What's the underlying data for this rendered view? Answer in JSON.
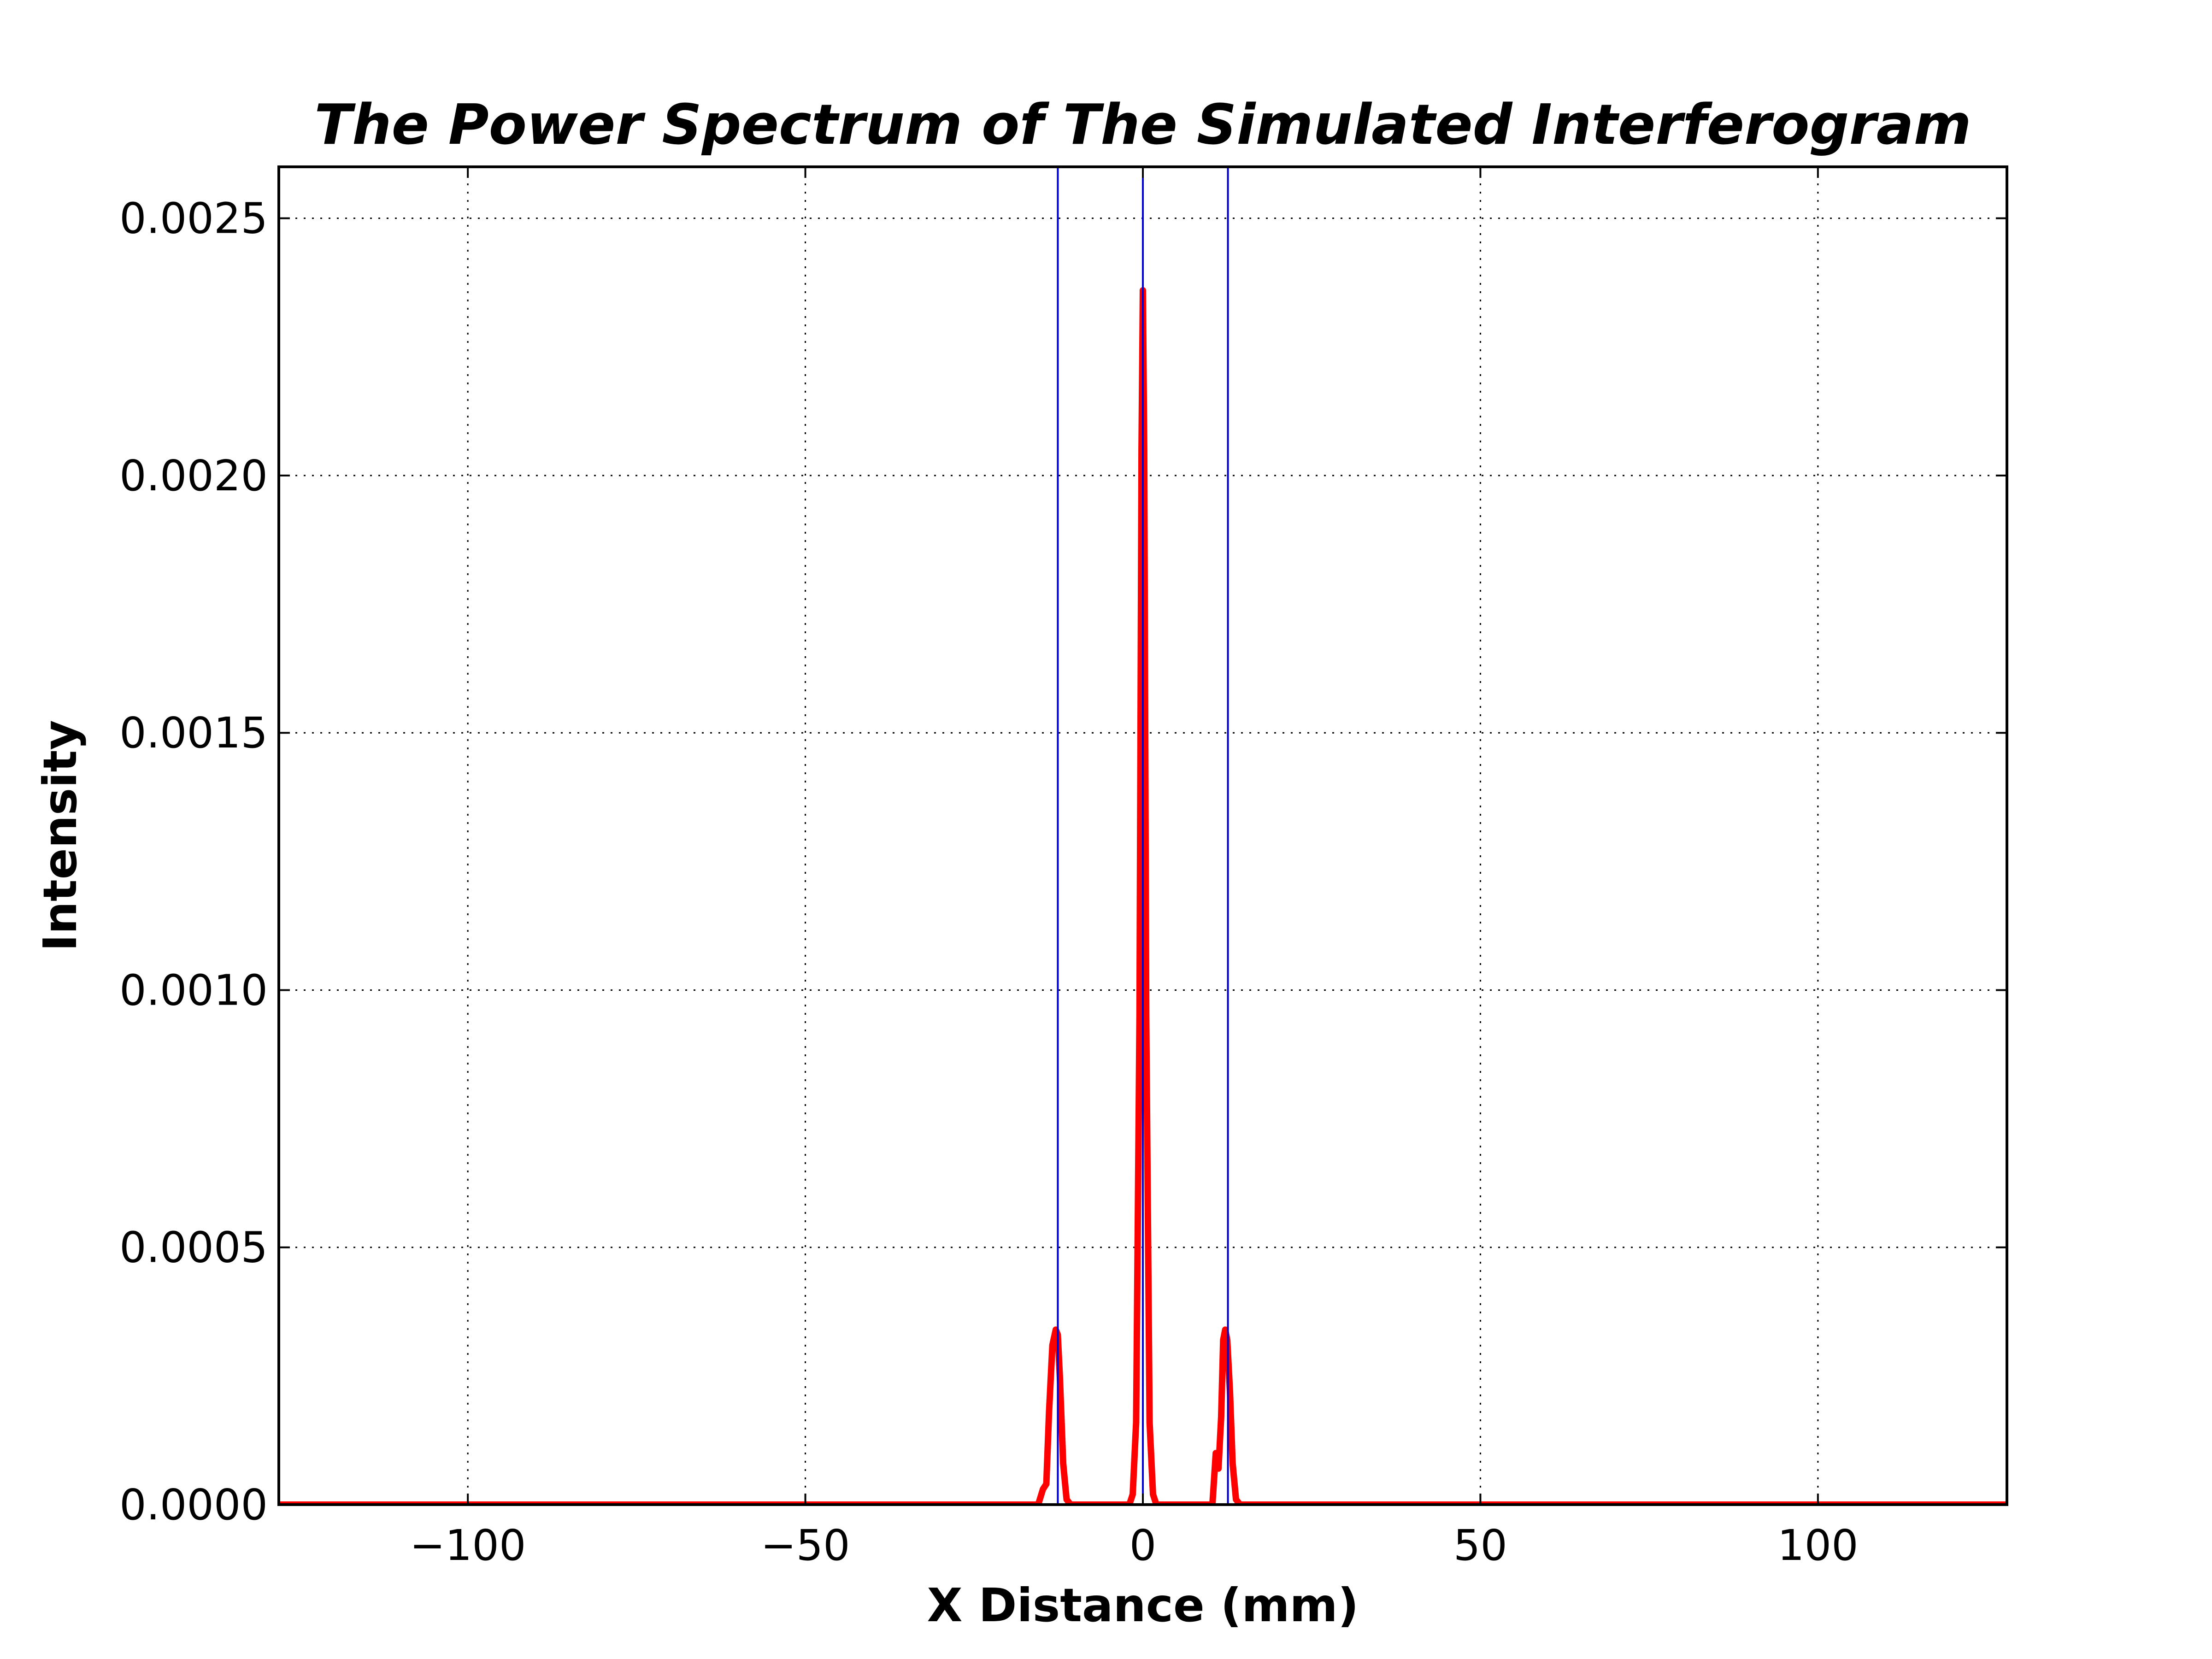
{
  "chart_data": {
    "type": "line",
    "title": "The Power Spectrum of The Simulated Interferogram",
    "xlabel": "X Distance (mm)",
    "ylabel": "Intensity",
    "xlim": [
      -128,
      128
    ],
    "ylim": [
      0,
      0.0026
    ],
    "grid": true,
    "legend": "none",
    "x_ticks": [
      -100,
      -50,
      0,
      50,
      100
    ],
    "x_tick_labels": [
      "−100",
      "−50",
      "0",
      "50",
      "100"
    ],
    "y_ticks": [
      0.0,
      0.0005,
      0.001,
      0.0015,
      0.002,
      0.0025
    ],
    "y_tick_labels": [
      "0.0000",
      "0.0005",
      "0.0010",
      "0.0015",
      "0.0020",
      "0.0025"
    ],
    "series": [
      {
        "color": "#ff0000",
        "x": [
          -128,
          -15.5,
          -14.8,
          -14.3,
          -13.9,
          -13.4,
          -12.9,
          -12.6,
          -12.3,
          -11.8,
          -11.3,
          -10.7,
          -2.0,
          -1.5,
          -1.0,
          -0.5,
          -0.2,
          0.0,
          0.2,
          0.5,
          1.0,
          1.5,
          2.0,
          10.3,
          10.8,
          11.2,
          11.6,
          11.9,
          12.2,
          12.5,
          12.9,
          13.3,
          13.8,
          14.4,
          128
        ],
        "y": [
          0.0,
          0.0,
          3e-05,
          4e-05,
          0.00018,
          0.00031,
          0.00034,
          0.00033,
          0.00025,
          8e-05,
          1e-05,
          0.0,
          0.0,
          2e-05,
          0.00016,
          0.00095,
          0.00205,
          0.00236,
          0.00205,
          0.00095,
          0.00016,
          2e-05,
          0.0,
          0.0,
          0.0001,
          7e-05,
          0.00017,
          0.00032,
          0.00034,
          0.00032,
          0.00022,
          8e-05,
          1e-05,
          0.0,
          0.0
        ]
      }
    ],
    "vertical_lines": {
      "color": "#0000cc",
      "x": [
        -12.6,
        0.0,
        12.6
      ]
    }
  }
}
